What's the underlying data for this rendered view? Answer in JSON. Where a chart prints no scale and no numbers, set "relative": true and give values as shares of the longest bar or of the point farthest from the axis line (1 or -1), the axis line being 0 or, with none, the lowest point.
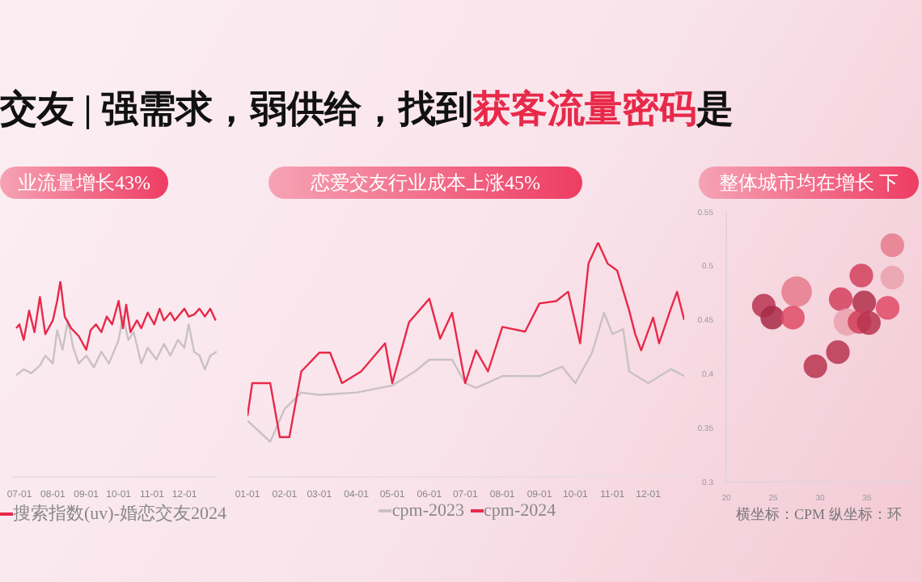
{
  "chart_data": [
    {
      "type": "line",
      "title": "业流量增长43%",
      "annotations": [
        "交友 | 强需求，弱供给，找到",
        "获客流量密码",
        "是"
      ],
      "relative": true,
      "legend": "bottom left",
      "xlim": [
        "--06-25",
        "--12-31"
      ],
      "xticks": [
        {
          "value": "--07-01",
          "label": "07-01"
        },
        {
          "value": "--08-01",
          "label": "08-01"
        },
        {
          "value": "--09-01",
          "label": "09-01"
        },
        {
          "value": "--10-01",
          "label": "10-01"
        },
        {
          "value": "--11-01",
          "label": "11-01"
        },
        {
          "value": "--12-01",
          "label": "12-01"
        }
      ],
      "series": [
        {
          "color": "#c9c1c4",
          "x": [
            "--06-28",
            "--07-05",
            "--07-12",
            "--07-20",
            "--07-25",
            "--08-01",
            "--08-05",
            "--08-10",
            "--08-15",
            "--08-20",
            "--08-25",
            "--09-01",
            "--09-08",
            "--09-15",
            "--09-22",
            "--10-01",
            "--10-05",
            "--10-10",
            "--10-15",
            "--10-22",
            "--10-28",
            "--11-05",
            "--11-12",
            "--11-18",
            "--11-25",
            "--12-01",
            "--12-05",
            "--12-10",
            "--12-15",
            "--12-20",
            "--12-25",
            "--12-31"
          ],
          "values": [
            0.52,
            0.55,
            0.53,
            0.57,
            0.62,
            0.58,
            0.75,
            0.65,
            0.8,
            0.66,
            0.58,
            0.62,
            0.56,
            0.64,
            0.58,
            0.7,
            0.82,
            0.7,
            0.74,
            0.58,
            0.66,
            0.6,
            0.68,
            0.62,
            0.7,
            0.66,
            0.78,
            0.64,
            0.62,
            0.55,
            0.62,
            0.64
          ]
        },
        {
          "name": "搜索指数(uv)-婚恋交友2024",
          "color": "#e8294a",
          "x": [
            "--06-28",
            "--07-01",
            "--07-05",
            "--07-10",
            "--07-15",
            "--07-20",
            "--07-25",
            "--08-01",
            "--08-05",
            "--08-08",
            "--08-12",
            "--08-18",
            "--08-25",
            "--09-01",
            "--09-05",
            "--09-10",
            "--09-15",
            "--09-20",
            "--09-25",
            "--10-01",
            "--10-05",
            "--10-08",
            "--10-12",
            "--10-18",
            "--10-22",
            "--10-28",
            "--11-03",
            "--11-08",
            "--11-12",
            "--11-18",
            "--11-22",
            "--12-01",
            "--12-05",
            "--12-10",
            "--12-15",
            "--12-20",
            "--12-25",
            "--12-30"
          ],
          "values": [
            0.76,
            0.78,
            0.7,
            0.85,
            0.74,
            0.92,
            0.73,
            0.8,
            0.9,
            1,
            0.82,
            0.76,
            0.72,
            0.65,
            0.75,
            0.78,
            0.74,
            0.82,
            0.78,
            0.9,
            0.76,
            0.88,
            0.74,
            0.8,
            0.76,
            0.84,
            0.78,
            0.86,
            0.8,
            0.84,
            0.8,
            0.86,
            0.82,
            0.83,
            0.86,
            0.82,
            0.86,
            0.8
          ]
        }
      ]
    },
    {
      "type": "line",
      "title": "恋爱交友行业成本上涨45%",
      "relative": true,
      "legend": "bottom",
      "xlim": [
        "--01-01",
        "--12-31"
      ],
      "xticks": [
        {
          "value": "--01-01",
          "label": "01-01"
        },
        {
          "value": "--02-01",
          "label": "02-01"
        },
        {
          "value": "--03-01",
          "label": "03-01"
        },
        {
          "value": "--04-01",
          "label": "04-01"
        },
        {
          "value": "--05-01",
          "label": "05-01"
        },
        {
          "value": "--06-01",
          "label": "06-01"
        },
        {
          "value": "--07-01",
          "label": "07-01"
        },
        {
          "value": "--08-01",
          "label": "08-01"
        },
        {
          "value": "--09-01",
          "label": "09-01"
        },
        {
          "value": "--10-01",
          "label": "10-01"
        },
        {
          "value": "--11-01",
          "label": "11-01"
        },
        {
          "value": "--12-01",
          "label": "12-01"
        }
      ],
      "series": [
        {
          "name": "cpm-2023",
          "color": "#c9c1c4",
          "x": [
            "--01-01",
            "--01-20",
            "--02-01",
            "--02-15",
            "--03-01",
            "--04-01",
            "--05-01",
            "--05-20",
            "--06-01",
            "--06-20",
            "--07-01",
            "--07-10",
            "--08-01",
            "--09-01",
            "--09-20",
            "--10-01",
            "--10-15",
            "--10-25",
            "--11-01",
            "--11-10",
            "--11-15",
            "--12-01",
            "--12-20",
            "--12-31"
          ],
          "values": [
            0.24,
            0.15,
            0.29,
            0.36,
            0.35,
            0.36,
            0.39,
            0.45,
            0.5,
            0.5,
            0.4,
            0.38,
            0.43,
            0.43,
            0.47,
            0.4,
            0.53,
            0.7,
            0.61,
            0.63,
            0.45,
            0.4,
            0.46,
            0.43
          ]
        },
        {
          "name": "cpm-2024",
          "color": "#e8294a",
          "x": [
            "--01-01",
            "--01-05",
            "--01-20",
            "--01-28",
            "--02-05",
            "--02-15",
            "--03-01",
            "--03-10",
            "--03-20",
            "--04-05",
            "--04-25",
            "--05-01",
            "--05-15",
            "--06-01",
            "--06-10",
            "--06-20",
            "--07-01",
            "--07-10",
            "--07-20",
            "--08-01",
            "--08-20",
            "--09-01",
            "--09-15",
            "--09-25",
            "--10-05",
            "--10-12",
            "--10-20",
            "--10-28",
            "--11-05",
            "--11-15",
            "--11-20",
            "--11-25",
            "--12-05",
            "--12-10",
            "--12-20",
            "--12-25",
            "--12-31"
          ],
          "values": [
            0.26,
            0.4,
            0.4,
            0.17,
            0.17,
            0.45,
            0.53,
            0.53,
            0.4,
            0.45,
            0.57,
            0.4,
            0.66,
            0.76,
            0.59,
            0.7,
            0.4,
            0.54,
            0.45,
            0.64,
            0.62,
            0.74,
            0.75,
            0.79,
            0.57,
            0.91,
            1,
            0.91,
            0.88,
            0.71,
            0.61,
            0.54,
            0.68,
            0.57,
            0.72,
            0.79,
            0.67
          ]
        }
      ]
    },
    {
      "type": "bubble",
      "title": "整体城市均在增长 下",
      "xlabel": "横坐标：CPM 纵坐标：环",
      "xlim": [
        20,
        40
      ],
      "xticks": [
        20,
        25,
        30,
        35
      ],
      "ylim": [
        0.3,
        0.55
      ],
      "yticks": [
        0.3,
        0.35,
        0.4,
        0.45,
        0.5,
        0.55
      ],
      "x": [
        24.0,
        24.9,
        27.5,
        27.1,
        29.5,
        31.9,
        32.2,
        34.4,
        34.7,
        32.9,
        34.2,
        35.2,
        37.2,
        37.7,
        37.7
      ],
      "values": [
        0.463,
        0.452,
        0.476,
        0.452,
        0.407,
        0.42,
        0.469,
        0.491,
        0.466,
        0.448,
        0.448,
        0.447,
        0.461,
        0.519,
        0.489
      ],
      "sizes": [
        0.6,
        0.6,
        1,
        0.6,
        0.6,
        0.6,
        0.6,
        0.6,
        0.6,
        0.8,
        0.6,
        0.6,
        0.6,
        0.6,
        0.6
      ],
      "colors": [
        "#b8344f",
        "#a82a45",
        "#e57a8c",
        "#e04a66",
        "#b8344f",
        "#b8344f",
        "#d23f5c",
        "#d23f5c",
        "#b02e4a",
        "#eaa0ae",
        "#d23f5c",
        "#b8344f",
        "#e04a66",
        "#e57a8c",
        "#eaa0ae"
      ]
    }
  ]
}
